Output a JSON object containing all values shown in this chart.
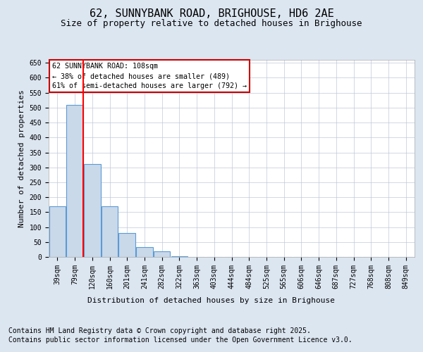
{
  "title": "62, SUNNYBANK ROAD, BRIGHOUSE, HD6 2AE",
  "subtitle": "Size of property relative to detached houses in Brighouse",
  "xlabel": "Distribution of detached houses by size in Brighouse",
  "ylabel": "Number of detached properties",
  "categories": [
    "39sqm",
    "79sqm",
    "120sqm",
    "160sqm",
    "201sqm",
    "241sqm",
    "282sqm",
    "322sqm",
    "363sqm",
    "403sqm",
    "444sqm",
    "484sqm",
    "525sqm",
    "565sqm",
    "606sqm",
    "646sqm",
    "687sqm",
    "727sqm",
    "768sqm",
    "808sqm",
    "849sqm"
  ],
  "values": [
    170,
    510,
    310,
    170,
    80,
    33,
    18,
    3,
    0,
    0,
    0,
    0,
    0,
    0,
    0,
    0,
    0,
    0,
    0,
    0,
    0
  ],
  "bar_color": "#c9d9ea",
  "bar_edge_color": "#5b9bd5",
  "red_line_x": 2,
  "annotation_text_line1": "62 SUNNYBANK ROAD: 108sqm",
  "annotation_text_line2": "← 38% of detached houses are smaller (489)",
  "annotation_text_line3": "61% of semi-detached houses are larger (792) →",
  "annotation_box_color": "#ffffff",
  "annotation_box_edge_color": "#cc0000",
  "ylim": [
    0,
    660
  ],
  "yticks": [
    0,
    50,
    100,
    150,
    200,
    250,
    300,
    350,
    400,
    450,
    500,
    550,
    600,
    650
  ],
  "grid_color": "#c0c8d8",
  "background_color": "#dce6f1",
  "plot_bg_color": "#ffffff",
  "footer_line1": "Contains HM Land Registry data © Crown copyright and database right 2025.",
  "footer_line2": "Contains public sector information licensed under the Open Government Licence v3.0.",
  "title_fontsize": 11,
  "subtitle_fontsize": 9,
  "tick_fontsize": 7,
  "label_fontsize": 8,
  "footer_fontsize": 7
}
